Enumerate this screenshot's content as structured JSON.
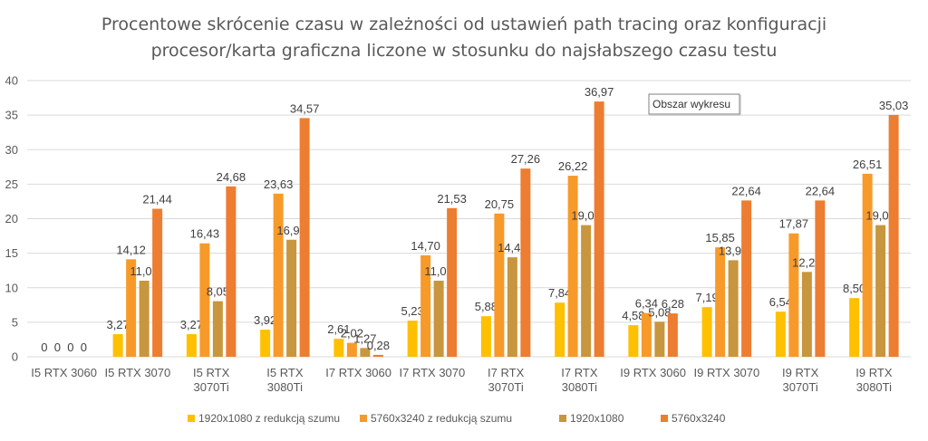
{
  "chart_data": {
    "type": "bar",
    "title_lines": [
      "Procentowe skrócenie czasu w zależności od ustawień path tracing oraz konfiguracji",
      "procesor/karta graficzna liczone w stosunku do najsłabszego czasu testu"
    ],
    "categories": [
      [
        "I5 RTX 3060"
      ],
      [
        "I5 RTX 3070"
      ],
      [
        "I5 RTX",
        "3070Ti"
      ],
      [
        "I5 RTX",
        "3080Ti"
      ],
      [
        "I7 RTX 3060"
      ],
      [
        "I7 RTX 3070"
      ],
      [
        "I7 RTX",
        "3070Ti"
      ],
      [
        "I7 RTX",
        "3080Ti"
      ],
      [
        "I9 RTX 3060"
      ],
      [
        "I9 RTX 3070"
      ],
      [
        "I9 RTX",
        "3070Ti"
      ],
      [
        "I9 RTX",
        "3080Ti"
      ]
    ],
    "series": [
      {
        "name": "1920x1080 z redukcją szumu",
        "color": "#FFC000",
        "values": [
          0,
          3.27,
          3.27,
          3.92,
          2.61,
          5.23,
          5.88,
          7.84,
          4.58,
          7.19,
          6.54,
          8.5
        ],
        "labels": [
          "0",
          "3,27",
          "3,27",
          "3,92",
          "2,61",
          "5,23",
          "5,88",
          "7,84",
          "4,58",
          "7,19",
          "6,54",
          "8,50"
        ]
      },
      {
        "name": "5760x3240 z redukcją szumu",
        "color": "#F79A2A",
        "values": [
          0,
          14.12,
          16.43,
          23.63,
          2.02,
          14.7,
          20.75,
          26.22,
          6.34,
          15.85,
          17.87,
          26.51
        ],
        "labels": [
          "0",
          "14,12",
          "16,43",
          "23,63",
          "2,02",
          "14,70",
          "20,75",
          "26,22",
          "6,34",
          "15,85",
          "17,87",
          "26,51"
        ]
      },
      {
        "name": "1920x1080",
        "color": "#C8963E",
        "values": [
          0,
          11.02,
          8.05,
          16.95,
          1.27,
          11.02,
          14.41,
          19.07,
          5.08,
          13.98,
          12.29,
          19.07
        ],
        "labels": [
          "0",
          "11,02",
          "8,05",
          "16,95",
          "1,27",
          "11,02",
          "14,41",
          "19,07",
          "5,08",
          "13,98",
          "12,29",
          "19,07"
        ]
      },
      {
        "name": "5760x3240",
        "color": "#ED7D31",
        "values": [
          0,
          21.44,
          24.68,
          34.57,
          0.28,
          21.53,
          27.26,
          36.97,
          6.28,
          22.64,
          22.64,
          35.03
        ],
        "labels": [
          "0",
          "21,44",
          "24,68",
          "34,57",
          "0,28",
          "21,53",
          "27,26",
          "36,97",
          "6,28",
          "22,64",
          "22,64",
          "35,03"
        ]
      }
    ],
    "yticks": [
      "0",
      "5",
      "10",
      "15",
      "20",
      "25",
      "30",
      "35",
      "40"
    ],
    "ylim": [
      0,
      40
    ],
    "grid": true,
    "legend": "bottom",
    "tooltip": "Obszar wykresu"
  }
}
